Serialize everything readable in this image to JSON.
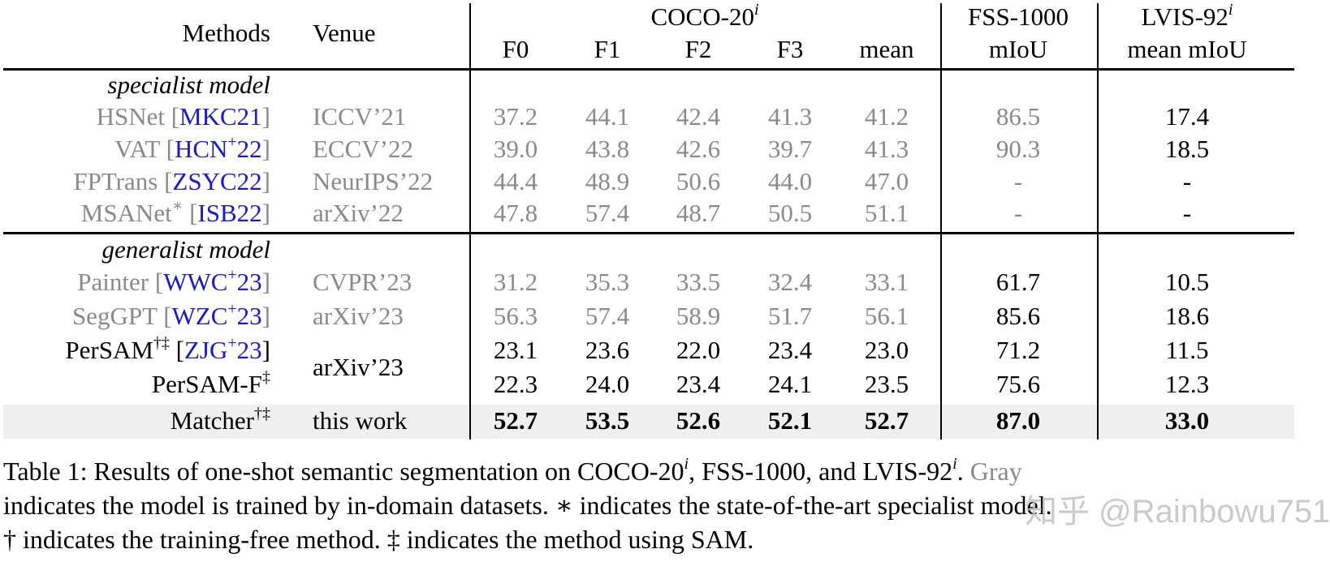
{
  "header": {
    "methods": "Methods",
    "venue": "Venue",
    "coco": "COCO-20",
    "coco_sup": "i",
    "fss": "FSS-1000",
    "lvis": "LVIS-92",
    "lvis_sup": "i",
    "folds": [
      "F0",
      "F1",
      "F2",
      "F3",
      "mean"
    ],
    "fss_metric": "mIoU",
    "lvis_metric": "mean mIoU"
  },
  "groups": {
    "specialist": "specialist model",
    "generalist": "generalist model"
  },
  "rows": [
    {
      "name": "HSNet [",
      "cite": "MKC21",
      "cite_sup": "",
      "close": "]",
      "name_sup": "",
      "venue": "ICCV’21",
      "vals": [
        "37.2",
        "44.1",
        "42.4",
        "41.3",
        "41.2"
      ],
      "fss": "86.5",
      "lvis": "17.4"
    },
    {
      "name": "VAT [",
      "cite": "HCN",
      "cite_sup": "+",
      "cite_tail": "22",
      "close": "]",
      "name_sup": "",
      "venue": "ECCV’22",
      "vals": [
        "39.0",
        "43.8",
        "42.6",
        "39.7",
        "41.3"
      ],
      "fss": "90.3",
      "lvis": "18.5"
    },
    {
      "name": "FPTrans [",
      "cite": "ZSYC22",
      "close": "]",
      "name_sup": "",
      "venue": "NeurIPS’22",
      "vals": [
        "44.4",
        "48.9",
        "50.6",
        "44.0",
        "47.0"
      ],
      "fss": "-",
      "lvis": "-"
    },
    {
      "name": "MSANet",
      "name_sup": "∗",
      "name_tail": " [",
      "cite": "ISB22",
      "close": "]",
      "venue": "arXiv’22",
      "vals": [
        "47.8",
        "57.4",
        "48.7",
        "50.5",
        "51.1"
      ],
      "fss": "-",
      "lvis": "-"
    },
    {
      "name": "Painter [",
      "cite": "WWC",
      "cite_sup": "+",
      "cite_tail": "23",
      "close": "]",
      "venue": "CVPR’23",
      "vals": [
        "31.2",
        "35.3",
        "33.5",
        "32.4",
        "33.1"
      ],
      "fss": "61.7",
      "lvis": "10.5"
    },
    {
      "name": "SegGPT [",
      "cite": "WZC",
      "cite_sup": "+",
      "cite_tail": "23",
      "close": "]",
      "venue": "arXiv’23",
      "vals": [
        "56.3",
        "57.4",
        "58.9",
        "51.7",
        "56.1"
      ],
      "fss": "85.6",
      "lvis": "18.6"
    },
    {
      "name": "PerSAM",
      "name_sup": "†‡",
      "name_tail": " [",
      "cite": "ZJG",
      "cite_sup": "+",
      "cite_tail": "23",
      "close": "]",
      "venue": "arXiv’23",
      "vals": [
        "23.1",
        "23.6",
        "22.0",
        "23.4",
        "23.0"
      ],
      "fss": "71.2",
      "lvis": "11.5"
    },
    {
      "name": "PerSAM-F",
      "name_sup": "‡",
      "venue": "",
      "vals": [
        "22.3",
        "24.0",
        "23.4",
        "24.1",
        "23.5"
      ],
      "fss": "75.6",
      "lvis": "12.3"
    },
    {
      "name": "Matcher",
      "name_sup": "†‡",
      "venue": "this work",
      "vals": [
        "52.7",
        "53.5",
        "52.6",
        "52.1",
        "52.7"
      ],
      "fss": "87.0",
      "lvis": "33.0"
    }
  ],
  "caption": {
    "l1a": "Table 1: Results of one-shot semantic segmentation on COCO-20",
    "l1b": ", FSS-1000, and LVIS-92",
    "l1c": ". ",
    "l1gray": "Gray",
    "sup_i": "i",
    "l2": "indicates the model is trained by in-domain datasets. ∗ indicates the state-of-the-art specialist model.",
    "l3": "† indicates the training-free method. ‡ indicates the method using SAM."
  },
  "watermark": "知乎 @Rainbowu751"
}
